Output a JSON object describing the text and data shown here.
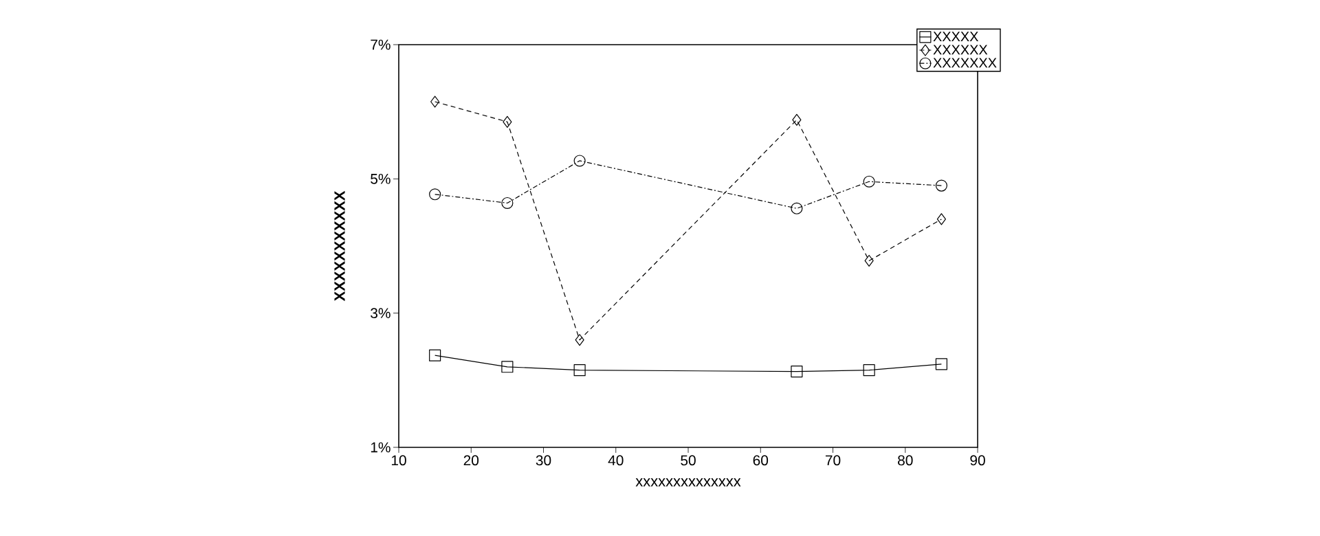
{
  "chart_data": {
    "type": "line",
    "xlabel": "xxxxxxxxxxxxxx",
    "ylabel": "XXXXXXXXXXX",
    "xlim": [
      10,
      90
    ],
    "xticks": [
      10,
      20,
      30,
      40,
      50,
      60,
      70,
      80,
      90
    ],
    "ylim": [
      1,
      7
    ],
    "yticks": [
      {
        "value": 1,
        "label": "1%"
      },
      {
        "value": 3,
        "label": "3%"
      },
      {
        "value": 5,
        "label": "5%"
      },
      {
        "value": 7,
        "label": "7%"
      }
    ],
    "x": [
      15,
      25,
      35,
      65,
      75,
      85
    ],
    "grid": false,
    "legend": "top right",
    "series": [
      {
        "name": "XXXXX",
        "color": "#000000",
        "marker": "square",
        "line_style": "solid",
        "values": [
          2.37,
          2.2,
          2.15,
          2.13,
          2.15,
          2.24
        ]
      },
      {
        "name": "XXXXXX",
        "color": "#000000",
        "marker": "diamond",
        "line_style": "dashed",
        "values": [
          6.15,
          5.85,
          2.6,
          5.88,
          3.78,
          4.4
        ]
      },
      {
        "name": "XXXXXXX",
        "color": "#000000",
        "marker": "circle",
        "line_style": "dashdot",
        "values": [
          4.77,
          4.64,
          5.27,
          4.56,
          4.96,
          4.9
        ]
      }
    ]
  }
}
